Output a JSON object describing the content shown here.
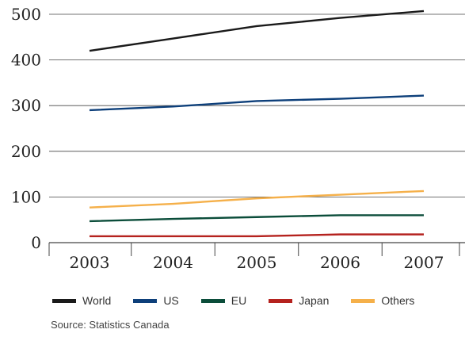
{
  "chart_data": {
    "type": "line",
    "categories": [
      "2003",
      "2004",
      "2005",
      "2006",
      "2007"
    ],
    "series": [
      {
        "name": "World",
        "values": [
          420,
          447,
          474,
          492,
          507
        ],
        "color": "#1a1a1a"
      },
      {
        "name": "US",
        "values": [
          290,
          298,
          310,
          315,
          322
        ],
        "color": "#0d3f7a"
      },
      {
        "name": "EU",
        "values": [
          47,
          52,
          56,
          60,
          60
        ],
        "color": "#0b4d3a"
      },
      {
        "name": "Japan",
        "values": [
          14,
          14,
          14,
          18,
          18
        ],
        "color": "#b5221e"
      },
      {
        "name": "Others",
        "values": [
          77,
          85,
          97,
          105,
          113
        ],
        "color": "#f5b04a"
      }
    ],
    "ylim": [
      0,
      500
    ],
    "yticks": [
      "0",
      "100",
      "200",
      "300",
      "400",
      "500"
    ],
    "grid": true,
    "legend_position": "bottom"
  },
  "source": "Source: Statistics Canada"
}
